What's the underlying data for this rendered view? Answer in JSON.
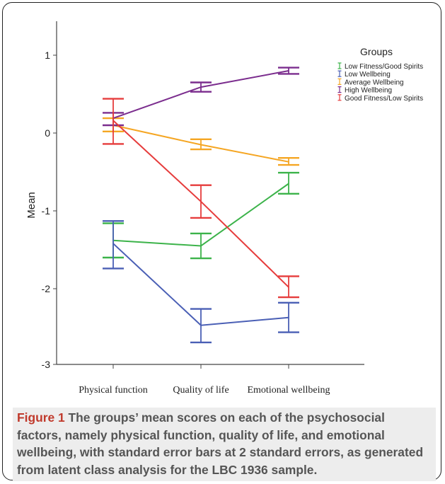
{
  "chart_data": {
    "type": "line",
    "categories": [
      "Physical function",
      "Quality of life",
      "Emotional wellbeing"
    ],
    "ylabel": "Mean",
    "xlabel": "",
    "ylim": [
      -3,
      1.4
    ],
    "yticks": [
      1,
      0,
      -1,
      -2,
      -3
    ],
    "error_bars": true,
    "legend_title": "Groups",
    "legend_position": "top-right",
    "grid": false,
    "series": [
      {
        "name": "Low Fitness/Good Spirits",
        "color": "#3cb34a",
        "values": [
          -1.38,
          -1.45,
          -0.65
        ],
        "lower": [
          -1.6,
          -1.61,
          -0.78
        ],
        "upper": [
          -1.16,
          -1.29,
          -0.51
        ]
      },
      {
        "name": "Low Wellbeing",
        "color": "#4a5fb5",
        "values": [
          -1.42,
          -2.47,
          -2.37
        ],
        "lower": [
          -1.74,
          -2.69,
          -2.56
        ],
        "upper": [
          -1.13,
          -2.26,
          -2.18
        ]
      },
      {
        "name": "Average Wellbeing",
        "color": "#f5a623",
        "values": [
          0.1,
          -0.15,
          -0.37
        ],
        "lower": [
          0.02,
          -0.21,
          -0.41
        ],
        "upper": [
          0.19,
          -0.08,
          -0.32
        ]
      },
      {
        "name": "High Wellbeing",
        "color": "#7b2d8e",
        "values": [
          0.19,
          0.59,
          0.8
        ],
        "lower": [
          0.1,
          0.53,
          0.76
        ],
        "upper": [
          0.26,
          0.65,
          0.84
        ]
      },
      {
        "name": "Good Fitness/Low Spirits",
        "color": "#e63c3c",
        "values": [
          0.16,
          -0.88,
          -1.98
        ],
        "lower": [
          -0.14,
          -1.09,
          -2.11
        ],
        "upper": [
          0.44,
          -0.67,
          -1.84
        ]
      }
    ]
  },
  "caption": {
    "label": "Figure 1",
    "text": " The groups’ mean scores on each of the psychosocial factors, namely physical function, quality of life, and emotional wellbeing, with standard error bars at 2 standard errors, as generated from latent class analysis for the LBC 1936 sample."
  }
}
